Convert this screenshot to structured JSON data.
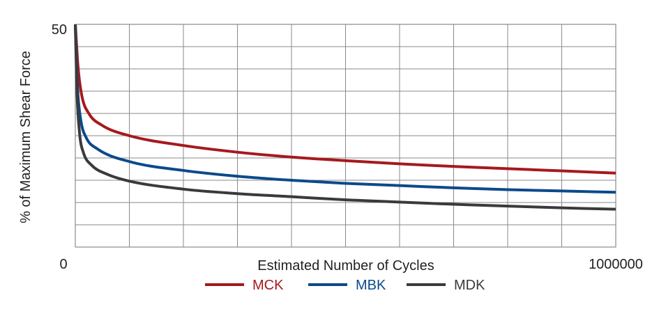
{
  "chart_data": {
    "type": "line",
    "title": "",
    "xlabel": "Estimated Number of Cycles",
    "ylabel": "% of Maximum Shear Force",
    "xlim": [
      0,
      1000000
    ],
    "ylim": [
      0,
      50
    ],
    "x_tick_labels": {
      "min": "0",
      "max": "1000000"
    },
    "y_tick_labels": {
      "max": "50"
    },
    "grid": true,
    "grid_divisions": {
      "x": 10,
      "y": 10
    },
    "legend_position": "bottom-center",
    "series": [
      {
        "name": "MCK",
        "color": "#a6191d",
        "x": [
          0,
          5000,
          12000,
          25000,
          50000,
          100000,
          200000,
          300000,
          400000,
          500000,
          600000,
          700000,
          800000,
          900000,
          1000000
        ],
        "y": [
          50,
          40.5,
          34.0,
          30.0,
          27.3,
          25.0,
          22.8,
          21.3,
          20.2,
          19.4,
          18.7,
          18.1,
          17.6,
          17.1,
          16.6
        ]
      },
      {
        "name": "MBK",
        "color": "#0b4a8b",
        "x": [
          0,
          4000,
          10000,
          20000,
          40000,
          100000,
          200000,
          300000,
          400000,
          500000,
          600000,
          700000,
          800000,
          900000,
          1000000
        ],
        "y": [
          50,
          36.0,
          28.6,
          24.6,
          22.1,
          19.2,
          17.2,
          15.9,
          15.0,
          14.3,
          13.8,
          13.3,
          12.9,
          12.6,
          12.3
        ]
      },
      {
        "name": "MDK",
        "color": "#3a3a3c",
        "x": [
          0,
          3000,
          8000,
          15000,
          30000,
          60000,
          100000,
          200000,
          300000,
          400000,
          500000,
          600000,
          700000,
          800000,
          900000,
          1000000
        ],
        "y": [
          50,
          35.0,
          25.4,
          21.2,
          18.4,
          16.3,
          14.8,
          13.0,
          12.0,
          11.3,
          10.6,
          10.1,
          9.6,
          9.2,
          8.8,
          8.5
        ]
      }
    ]
  }
}
